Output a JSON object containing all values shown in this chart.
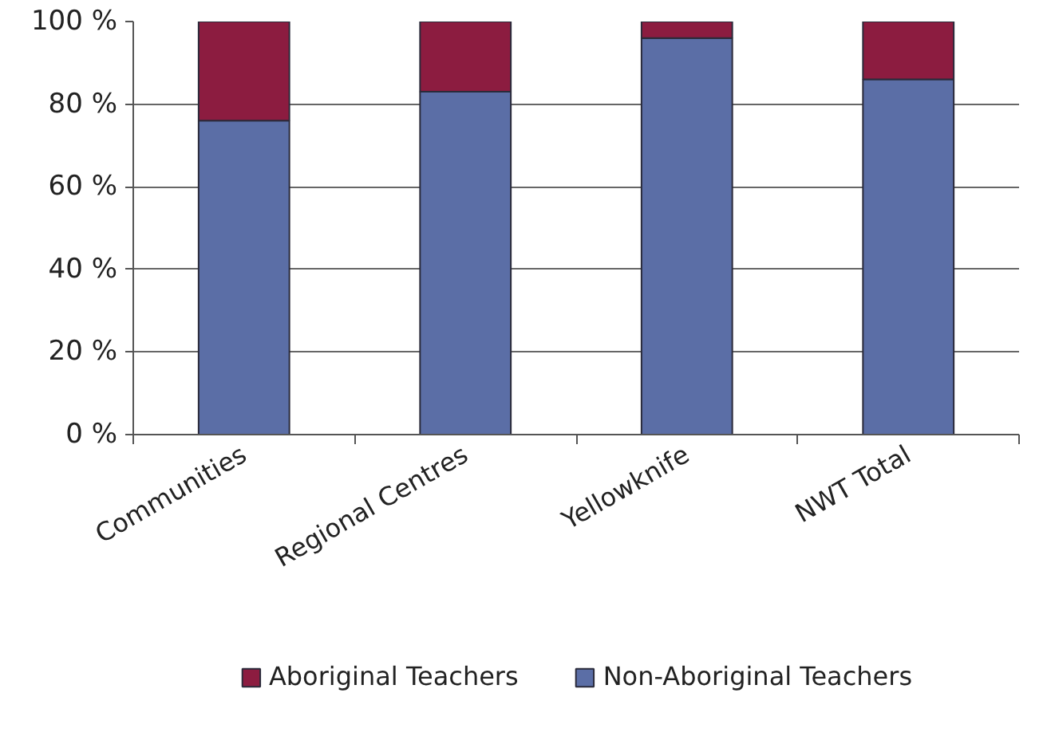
{
  "chart_data": {
    "type": "bar",
    "stacked": true,
    "categories": [
      "Communities",
      "Regional Centres",
      "Yellowknife",
      "NWT Total"
    ],
    "series": [
      {
        "name": "Non-Aboriginal Teachers",
        "color": "#5b6ea6",
        "values": [
          76,
          83,
          96,
          86
        ]
      },
      {
        "name": "Aboriginal Teachers",
        "color": "#8c1c40",
        "values": [
          24,
          17,
          4,
          14
        ]
      }
    ],
    "ylim": [
      0,
      100
    ],
    "yticks": [
      {
        "value": 0,
        "label": "0 %"
      },
      {
        "value": 20,
        "label": "20 %"
      },
      {
        "value": 40,
        "label": "40 %"
      },
      {
        "value": 60,
        "label": "60 %"
      },
      {
        "value": 80,
        "label": "80 %"
      },
      {
        "value": 100,
        "label": "100 %"
      }
    ],
    "grid": "y",
    "legend": "bottom"
  }
}
